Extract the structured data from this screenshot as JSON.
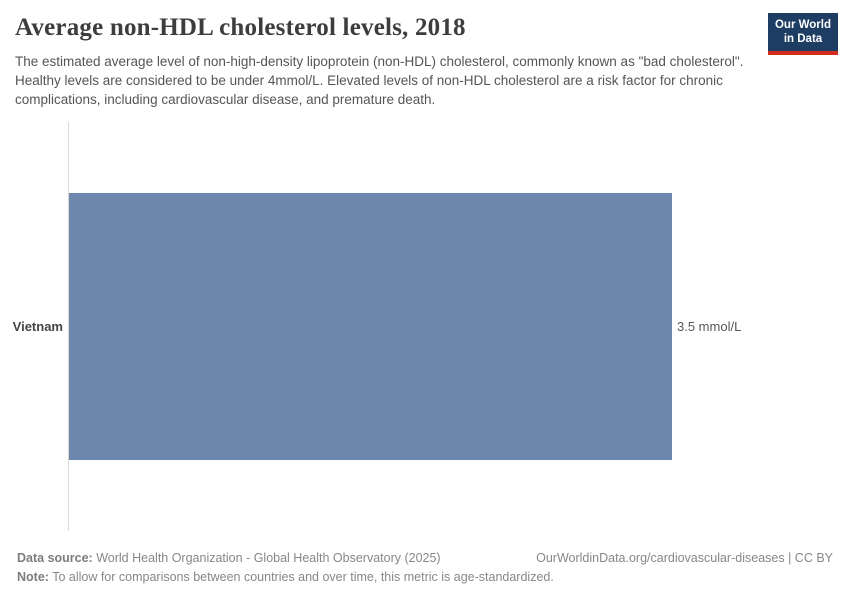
{
  "header": {
    "title": "Average non-HDL cholesterol levels, 2018",
    "subtitle": "The estimated average level of non-high-density lipoprotein (non-HDL) cholesterol, commonly known as \"bad cholesterol\". Healthy levels are considered to be under 4mmol/L. Elevated levels of non-HDL cholesterol are a risk factor for chronic complications, including cardiovascular disease, and premature death.",
    "logo": {
      "line1": "Our World",
      "line2": "in Data"
    }
  },
  "chart_data": {
    "type": "bar",
    "orientation": "horizontal",
    "title": "Average non-HDL cholesterol levels, 2018",
    "categories": [
      "Vietnam"
    ],
    "values": [
      3.5
    ],
    "unit": "mmol/L",
    "value_labels": [
      "3.5 mmol/L"
    ],
    "xlim": [
      0,
      3.5
    ],
    "xlabel": "",
    "ylabel": "",
    "grid": false,
    "legend": "none",
    "bar_color": "#6e87ad",
    "axis_color": "#d9d9d9"
  },
  "footer": {
    "data_source_label": "Data source:",
    "data_source": "World Health Organization - Global Health Observatory (2025)",
    "link": "OurWorldinData.org/cardiovascular-diseases | CC BY",
    "note_label": "Note:",
    "note": "To allow for comparisons between countries and over time, this metric is age-standardized."
  },
  "colors": {
    "bar": "#6e87ad",
    "logo_background": "#1d3d63",
    "logo_stripe": "#d42b20",
    "title_text": "#3d3d3d",
    "subtitle_text": "#555555",
    "footer_text": "#878787"
  }
}
